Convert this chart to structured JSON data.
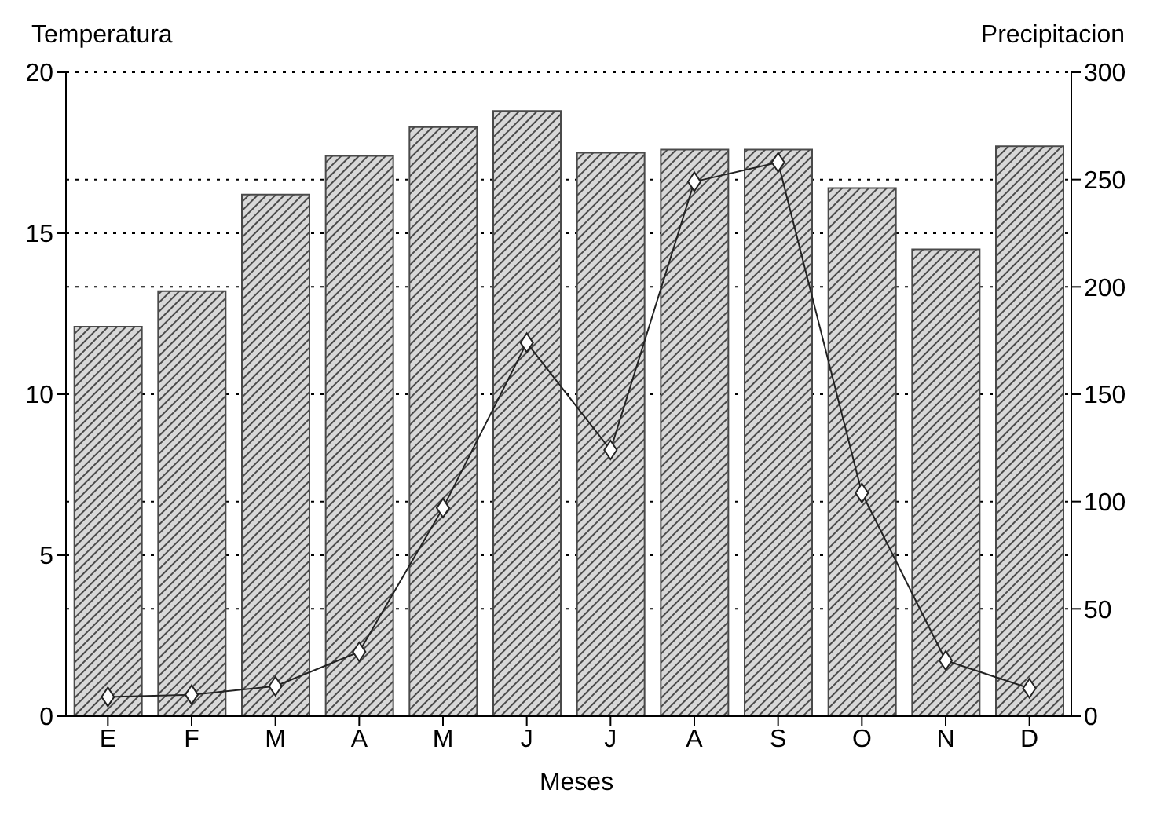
{
  "chart_data": {
    "type": "bar",
    "ylabel": "Temperatura",
    "y2label": "Precipitacion",
    "xlabel": "Meses",
    "categories": [
      "E",
      "F",
      "M",
      "A",
      "M",
      "J",
      "J",
      "A",
      "S",
      "O",
      "N",
      "D"
    ],
    "series": [
      {
        "color": "#4a4a4a",
        "values": [
          12.1,
          13.2,
          16.2,
          17.4,
          18.3,
          18.8,
          17.5,
          17.6,
          17.6,
          16.4,
          14.5,
          17.7
        ]
      },
      {
        "type": "line",
        "axis": "y2",
        "color": "#222222",
        "marker": "diamond",
        "values": [
          9,
          10,
          14,
          30,
          97,
          174,
          124,
          249,
          258,
          104,
          26,
          13
        ]
      }
    ],
    "ylim": [
      0,
      20
    ],
    "yticks": [
      0,
      5,
      10,
      15,
      20
    ],
    "y2lim": [
      0,
      300
    ],
    "y2ticks": [
      0,
      50,
      100,
      150,
      200,
      250,
      300
    ],
    "grid": "y",
    "line_style": "solid"
  }
}
